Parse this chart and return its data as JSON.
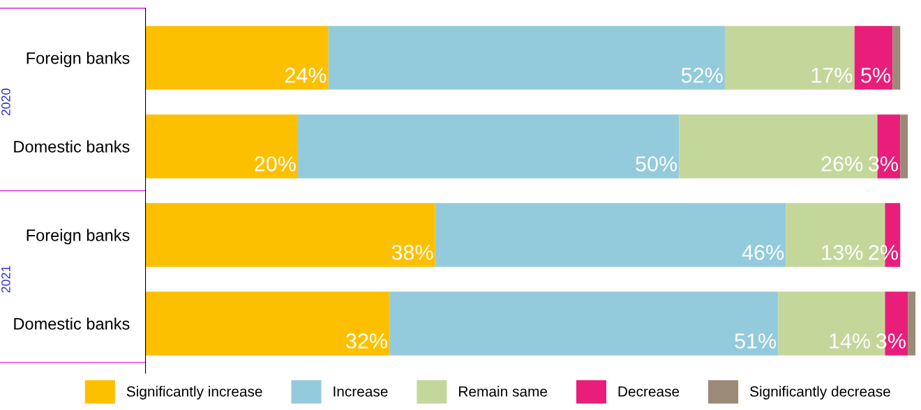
{
  "chart_data": {
    "type": "bar",
    "orientation": "horizontal",
    "stacked": true,
    "categories": [
      "Foreign banks",
      "Domestic banks",
      "Foreign banks",
      "Domestic banks"
    ],
    "series": [
      {
        "name": "Significantly increase",
        "color": "#fdc000",
        "values": [
          24,
          20,
          38,
          32
        ],
        "value_labels": [
          "24%",
          "20%",
          "38%",
          "32%"
        ]
      },
      {
        "name": "Increase",
        "color": "#93cbdc",
        "values": [
          52,
          50,
          46,
          51
        ],
        "value_labels": [
          "52%",
          "50%",
          "46%",
          "51%"
        ]
      },
      {
        "name": "Remain same",
        "color": "#c4d79b",
        "values": [
          17,
          26,
          13,
          14
        ],
        "value_labels": [
          "17%",
          "26%",
          "13%",
          "14%"
        ]
      },
      {
        "name": "Decrease",
        "color": "#e91e7a",
        "values": [
          5,
          3,
          2,
          3
        ],
        "value_labels": [
          "5%",
          "3%",
          "2%",
          "3%"
        ]
      },
      {
        "name": "Significantly decrease",
        "color": "#9c8a78",
        "values": [
          1,
          1,
          0,
          1
        ],
        "value_labels": [
          null,
          null,
          null,
          null
        ]
      }
    ],
    "annotations": [
      "2020",
      "2021"
    ],
    "legend": "bottom",
    "grid": false,
    "tick_labels": "y"
  }
}
